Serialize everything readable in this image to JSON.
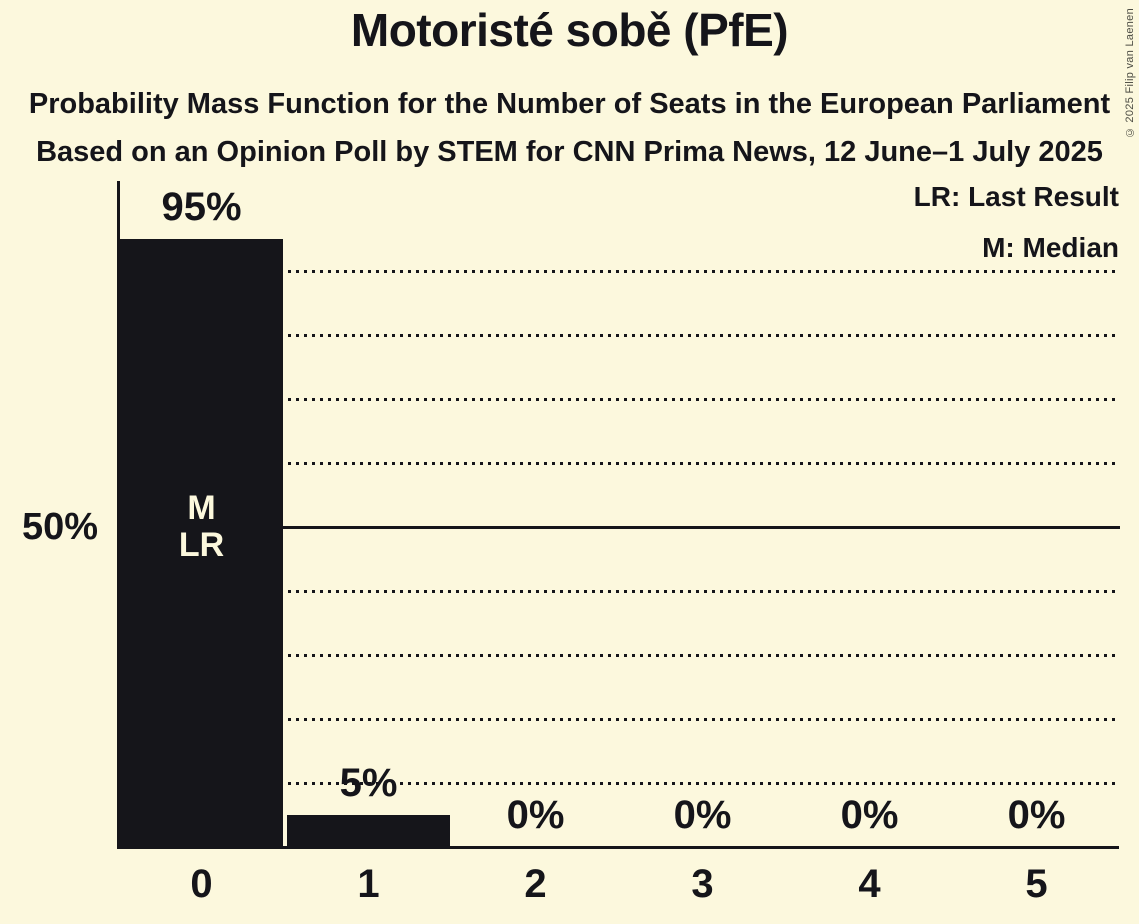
{
  "title": "Motoristé sobě (PfE)",
  "subtitle1": "Probability Mass Function for the Number of Seats in the European Parliament",
  "subtitle2": "Based on an Opinion Poll by STEM for CNN Prima News, 12 June–1 July 2025",
  "legend": {
    "lr": "LR: Last Result",
    "m": "M: Median"
  },
  "y_axis_label": "50%",
  "copyright": "© 2025 Filip van Laenen",
  "colors": {
    "background": "#fcf8dd",
    "bar": "#15151a",
    "text": "#15151a",
    "copyright": "#4d4d44"
  },
  "chart_data": {
    "type": "bar",
    "categories": [
      "0",
      "1",
      "2",
      "3",
      "4",
      "5"
    ],
    "values": [
      95,
      5,
      0,
      0,
      0,
      0
    ],
    "value_labels": [
      "95%",
      "5%",
      "0%",
      "0%",
      "0%",
      "0%"
    ],
    "title": "Motoristé sobě (PfE)",
    "xlabel": "",
    "ylabel": "",
    "ylim": [
      0,
      100
    ],
    "gridline_interval": 10,
    "solid_gridline_at": 50,
    "y_tick_labels": [
      {
        "value": 50,
        "label": "50%"
      }
    ],
    "grid": "dotted-horizontal",
    "legend_position": "top-right",
    "legend_entries": [
      "LR: Last Result",
      "M: Median"
    ],
    "bar_annotations": [
      {
        "category_index": 0,
        "lines": [
          "M",
          "LR"
        ]
      }
    ]
  }
}
